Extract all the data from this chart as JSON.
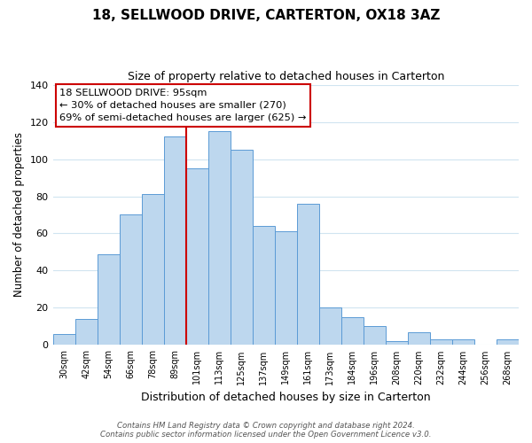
{
  "title": "18, SELLWOOD DRIVE, CARTERTON, OX18 3AZ",
  "subtitle": "Size of property relative to detached houses in Carterton",
  "xlabel": "Distribution of detached houses by size in Carterton",
  "ylabel": "Number of detached properties",
  "bar_labels": [
    "30sqm",
    "42sqm",
    "54sqm",
    "66sqm",
    "78sqm",
    "89sqm",
    "101sqm",
    "113sqm",
    "125sqm",
    "137sqm",
    "149sqm",
    "161sqm",
    "173sqm",
    "184sqm",
    "196sqm",
    "208sqm",
    "220sqm",
    "232sqm",
    "244sqm",
    "256sqm",
    "268sqm"
  ],
  "bar_values": [
    6,
    14,
    49,
    70,
    81,
    112,
    95,
    115,
    105,
    64,
    61,
    76,
    20,
    15,
    10,
    2,
    7,
    3,
    3,
    0,
    3
  ],
  "bar_color": "#bdd7ee",
  "bar_edge_color": "#5b9bd5",
  "vline_x": 5.5,
  "vline_color": "#cc0000",
  "ylim": [
    0,
    140
  ],
  "yticks": [
    0,
    20,
    40,
    60,
    80,
    100,
    120,
    140
  ],
  "annotation_title": "18 SELLWOOD DRIVE: 95sqm",
  "annotation_line1": "← 30% of detached houses are smaller (270)",
  "annotation_line2": "69% of semi-detached houses are larger (625) →",
  "annotation_box_color": "#ffffff",
  "annotation_box_edge_color": "#cc0000",
  "footer_line1": "Contains HM Land Registry data © Crown copyright and database right 2024.",
  "footer_line2": "Contains public sector information licensed under the Open Government Licence v3.0.",
  "background_color": "#ffffff",
  "grid_color": "#d0e4f0"
}
